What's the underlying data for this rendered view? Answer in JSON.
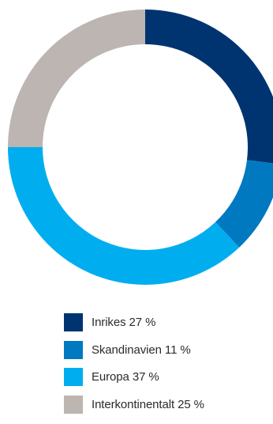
{
  "chart_data": {
    "type": "pie",
    "donut": true,
    "title": "",
    "categories": [
      "Inrikes",
      "Skandinavien",
      "Europa",
      "Interkontinentalt"
    ],
    "values": [
      27,
      11,
      37,
      25
    ],
    "unit": "%",
    "colors": [
      "#003471",
      "#0079c1",
      "#00aeef",
      "#bcb5b1"
    ],
    "legend": {
      "placement": "bottom",
      "labels": [
        "Inrikes 27 %",
        "Skandinavien 11 %",
        "Europa 37 %",
        "Interkontinentalt 25 %"
      ]
    }
  }
}
